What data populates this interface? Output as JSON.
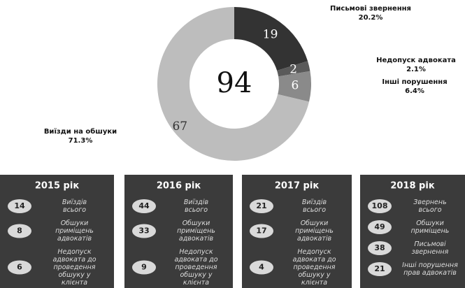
{
  "chart_data": {
    "type": "donut",
    "total": 94,
    "categories": [
      "Письмові звернення",
      "Недопуск адвоката",
      "Інші порушення",
      "Виїзди на обшуки"
    ],
    "values": [
      19,
      2,
      6,
      67
    ],
    "percents": [
      20.2,
      2.1,
      6.4,
      71.3
    ],
    "percent_labels": [
      "20.2%",
      "2.1%",
      "6.4%",
      "71.3%"
    ],
    "colors": [
      "#333333",
      "#5a5a5a",
      "#8a8a8a",
      "#bdbdbd"
    ]
  },
  "panels": [
    {
      "title": "2015 рік",
      "items": [
        {
          "number": 14,
          "lines": [
            "Виїздів",
            "всього"
          ]
        },
        {
          "number": 8,
          "lines": [
            "Обшуки",
            "приміщень",
            "адвокатів"
          ]
        },
        {
          "number": 6,
          "lines": [
            "Недопуск",
            "адвоката до",
            "проведення",
            "обшуку у",
            "клієнта"
          ]
        }
      ]
    },
    {
      "title": "2016 рік",
      "items": [
        {
          "number": 44,
          "lines": [
            "Виїздів",
            "всього"
          ]
        },
        {
          "number": 33,
          "lines": [
            "Обшуки",
            "приміщень",
            "адвокатів"
          ]
        },
        {
          "number": 9,
          "lines": [
            "Недопуск",
            "адвоката до",
            "проведення",
            "обшуку у",
            "клієнта"
          ]
        }
      ]
    },
    {
      "title": "2017 рік",
      "items": [
        {
          "number": 21,
          "lines": [
            "Виїздів",
            "всього"
          ]
        },
        {
          "number": 17,
          "lines": [
            "Обшуки",
            "приміщень",
            "адвокатів"
          ]
        },
        {
          "number": 4,
          "lines": [
            "Недопуск",
            "адвоката до",
            "проведення",
            "обшуку у",
            "клієнта"
          ]
        }
      ]
    },
    {
      "title": "2018 рік",
      "items": [
        {
          "number": 108,
          "lines": [
            "Звернень",
            "всього"
          ]
        },
        {
          "number": 49,
          "lines": [
            "Обшуки",
            "приміщень"
          ]
        },
        {
          "number": 38,
          "lines": [
            "Письмові",
            "звернення"
          ]
        },
        {
          "number": 21,
          "lines": [
            "Інші порушення",
            "прав адвокатів"
          ]
        }
      ]
    }
  ]
}
